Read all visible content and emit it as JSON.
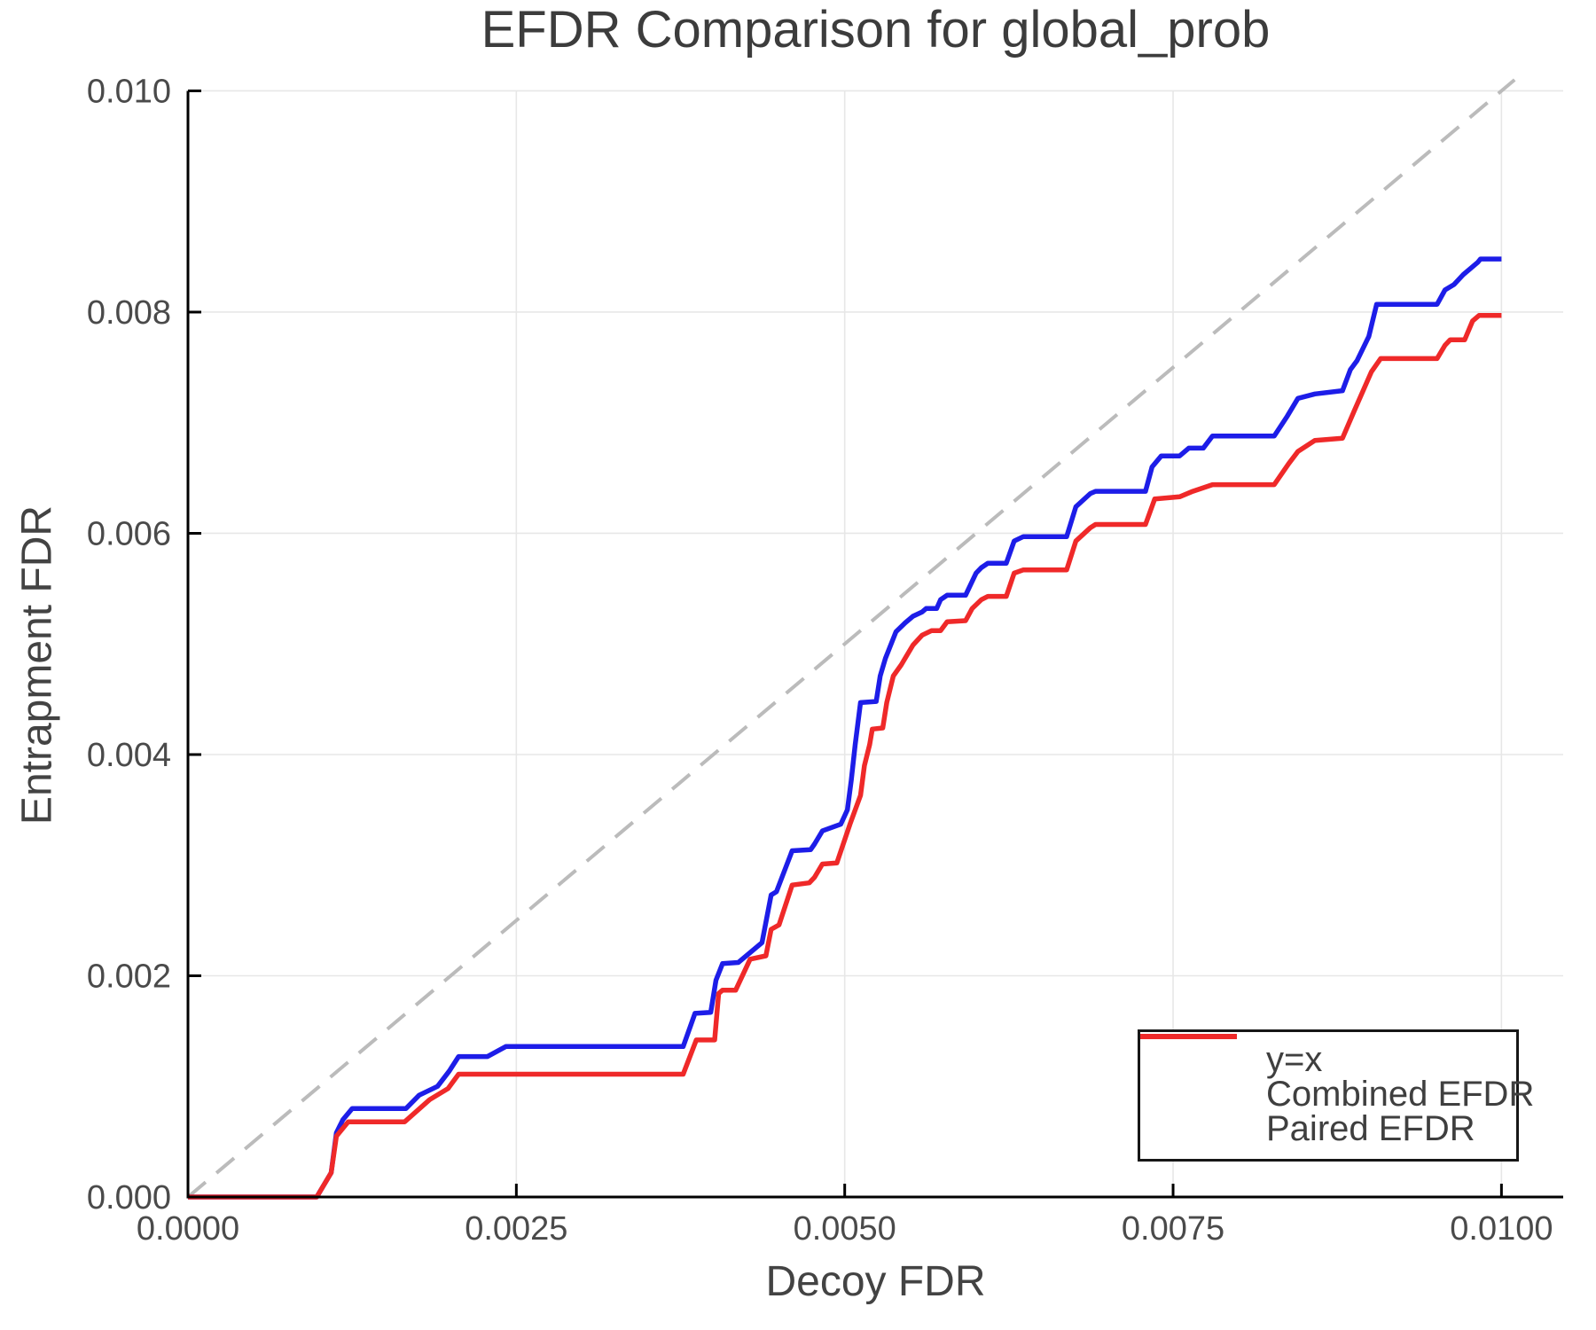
{
  "chart_data": {
    "type": "line",
    "title": "EFDR Comparison for global_prob",
    "xlabel": "Decoy FDR",
    "ylabel": "Entrapment FDR",
    "xlim": [
      0,
      0.01047
    ],
    "ylim": [
      0,
      0.0101
    ],
    "grid": true,
    "tick_direction": "in",
    "legend_position": "lower right",
    "x_ticks": [
      {
        "v": 0.0,
        "label": "0.0000"
      },
      {
        "v": 0.0025,
        "label": "0.0025"
      },
      {
        "v": 0.005,
        "label": "0.0050"
      },
      {
        "v": 0.0075,
        "label": "0.0075"
      },
      {
        "v": 0.01,
        "label": "0.0100"
      }
    ],
    "y_ticks": [
      {
        "v": 0.0,
        "label": "0.000"
      },
      {
        "v": 0.002,
        "label": "0.002"
      },
      {
        "v": 0.004,
        "label": "0.004"
      },
      {
        "v": 0.006,
        "label": "0.006"
      },
      {
        "v": 0.008,
        "label": "0.008"
      },
      {
        "v": 0.01,
        "label": "0.010"
      }
    ],
    "colors": {
      "grid": "#e7e7e7",
      "spine": "#000000",
      "tick_label": "#4a4a4a",
      "reference": "#bbbbbb",
      "combined": "#1d1de8",
      "paired": "#ef2929"
    },
    "series": [
      {
        "name": "y=x",
        "color": "#bbbbbb",
        "dash": true,
        "width": 4,
        "points": [
          [
            0.0,
            0.0
          ],
          [
            0.0101,
            0.0101
          ]
        ]
      },
      {
        "name": "Combined EFDR",
        "color": "#1d1de8",
        "dash": false,
        "width": 5.5,
        "points": [
          [
            0.0,
            0.0
          ],
          [
            0.00098,
            0.0
          ],
          [
            0.00109,
            0.00022
          ],
          [
            0.00113,
            0.00058
          ],
          [
            0.00118,
            0.0007
          ],
          [
            0.00125,
            0.0008
          ],
          [
            0.00166,
            0.0008
          ],
          [
            0.00176,
            0.00092
          ],
          [
            0.0019,
            0.001
          ],
          [
            0.00199,
            0.00114
          ],
          [
            0.00206,
            0.00127
          ],
          [
            0.00228,
            0.00127
          ],
          [
            0.00242,
            0.00136
          ],
          [
            0.00377,
            0.00136
          ],
          [
            0.00386,
            0.00166
          ],
          [
            0.00398,
            0.00167
          ],
          [
            0.00402,
            0.00196
          ],
          [
            0.00407,
            0.00211
          ],
          [
            0.00419,
            0.00212
          ],
          [
            0.00437,
            0.0023
          ],
          [
            0.00444,
            0.00273
          ],
          [
            0.00448,
            0.00276
          ],
          [
            0.0046,
            0.00313
          ],
          [
            0.00474,
            0.00314
          ],
          [
            0.00477,
            0.00319
          ],
          [
            0.00483,
            0.00331
          ],
          [
            0.00497,
            0.00337
          ],
          [
            0.00502,
            0.0035
          ],
          [
            0.00505,
            0.00377
          ],
          [
            0.00508,
            0.00409
          ],
          [
            0.00512,
            0.00447
          ],
          [
            0.00524,
            0.00448
          ],
          [
            0.00527,
            0.00471
          ],
          [
            0.00531,
            0.00487
          ],
          [
            0.00539,
            0.00511
          ],
          [
            0.00546,
            0.00519
          ],
          [
            0.00552,
            0.00525
          ],
          [
            0.00559,
            0.00529
          ],
          [
            0.00562,
            0.00532
          ],
          [
            0.0057,
            0.00532
          ],
          [
            0.00573,
            0.0054
          ],
          [
            0.00578,
            0.00544
          ],
          [
            0.00592,
            0.00544
          ],
          [
            0.006,
            0.00564
          ],
          [
            0.00604,
            0.00569
          ],
          [
            0.00609,
            0.00573
          ],
          [
            0.00623,
            0.00573
          ],
          [
            0.00629,
            0.00593
          ],
          [
            0.00636,
            0.00597
          ],
          [
            0.00669,
            0.00597
          ],
          [
            0.00676,
            0.00624
          ],
          [
            0.00687,
            0.00636
          ],
          [
            0.00691,
            0.00638
          ],
          [
            0.00729,
            0.00638
          ],
          [
            0.00734,
            0.0066
          ],
          [
            0.00741,
            0.0067
          ],
          [
            0.00755,
            0.0067
          ],
          [
            0.00762,
            0.00677
          ],
          [
            0.00773,
            0.00677
          ],
          [
            0.0078,
            0.00688
          ],
          [
            0.00827,
            0.00688
          ],
          [
            0.00837,
            0.00706
          ],
          [
            0.00845,
            0.00722
          ],
          [
            0.00858,
            0.00726
          ],
          [
            0.00879,
            0.00729
          ],
          [
            0.00885,
            0.00748
          ],
          [
            0.0089,
            0.00756
          ],
          [
            0.00899,
            0.00778
          ],
          [
            0.00905,
            0.00807
          ],
          [
            0.00951,
            0.00807
          ],
          [
            0.00957,
            0.0082
          ],
          [
            0.00964,
            0.00825
          ],
          [
            0.00971,
            0.00834
          ],
          [
            0.00982,
            0.00845
          ],
          [
            0.00984,
            0.00848
          ],
          [
            0.01,
            0.00848
          ]
        ]
      },
      {
        "name": "Paired EFDR",
        "color": "#ef2929",
        "dash": false,
        "width": 5.5,
        "points": [
          [
            0.0,
            0.0
          ],
          [
            0.00098,
            0.0
          ],
          [
            0.00109,
            0.00022
          ],
          [
            0.00113,
            0.00055
          ],
          [
            0.00122,
            0.00068
          ],
          [
            0.00165,
            0.00068
          ],
          [
            0.00184,
            0.00088
          ],
          [
            0.00198,
            0.00098
          ],
          [
            0.00206,
            0.00111
          ],
          [
            0.00377,
            0.00111
          ],
          [
            0.00387,
            0.00142
          ],
          [
            0.00401,
            0.00142
          ],
          [
            0.00404,
            0.00184
          ],
          [
            0.00407,
            0.00187
          ],
          [
            0.00417,
            0.00187
          ],
          [
            0.00428,
            0.00215
          ],
          [
            0.0044,
            0.00218
          ],
          [
            0.00444,
            0.00242
          ],
          [
            0.0045,
            0.00246
          ],
          [
            0.0046,
            0.00282
          ],
          [
            0.00473,
            0.00284
          ],
          [
            0.00477,
            0.00289
          ],
          [
            0.00483,
            0.00301
          ],
          [
            0.00494,
            0.00302
          ],
          [
            0.00504,
            0.00337
          ],
          [
            0.00512,
            0.00363
          ],
          [
            0.00515,
            0.0039
          ],
          [
            0.00519,
            0.00409
          ],
          [
            0.00521,
            0.00423
          ],
          [
            0.00529,
            0.00424
          ],
          [
            0.00532,
            0.00447
          ],
          [
            0.00537,
            0.00471
          ],
          [
            0.00543,
            0.00481
          ],
          [
            0.00552,
            0.00499
          ],
          [
            0.00559,
            0.00508
          ],
          [
            0.00566,
            0.00512
          ],
          [
            0.00573,
            0.00512
          ],
          [
            0.00578,
            0.0052
          ],
          [
            0.00592,
            0.00521
          ],
          [
            0.00597,
            0.00532
          ],
          [
            0.00604,
            0.0054
          ],
          [
            0.00609,
            0.00543
          ],
          [
            0.00623,
            0.00543
          ],
          [
            0.00629,
            0.00564
          ],
          [
            0.00636,
            0.00567
          ],
          [
            0.00669,
            0.00567
          ],
          [
            0.00676,
            0.00593
          ],
          [
            0.00687,
            0.00605
          ],
          [
            0.00691,
            0.00608
          ],
          [
            0.00729,
            0.00608
          ],
          [
            0.00736,
            0.00631
          ],
          [
            0.00755,
            0.00633
          ],
          [
            0.00765,
            0.00638
          ],
          [
            0.0078,
            0.00644
          ],
          [
            0.00827,
            0.00644
          ],
          [
            0.00838,
            0.00663
          ],
          [
            0.00845,
            0.00674
          ],
          [
            0.00858,
            0.00684
          ],
          [
            0.00879,
            0.00686
          ],
          [
            0.00888,
            0.00711
          ],
          [
            0.00901,
            0.00746
          ],
          [
            0.00908,
            0.00758
          ],
          [
            0.00951,
            0.00758
          ],
          [
            0.00957,
            0.0077
          ],
          [
            0.00961,
            0.00775
          ],
          [
            0.00972,
            0.00775
          ],
          [
            0.00978,
            0.00792
          ],
          [
            0.00983,
            0.00797
          ],
          [
            0.01,
            0.00797
          ]
        ]
      }
    ]
  },
  "legend": {
    "items": [
      {
        "label": "y=x"
      },
      {
        "label": "Combined EFDR"
      },
      {
        "label": "Paired EFDR"
      }
    ]
  }
}
